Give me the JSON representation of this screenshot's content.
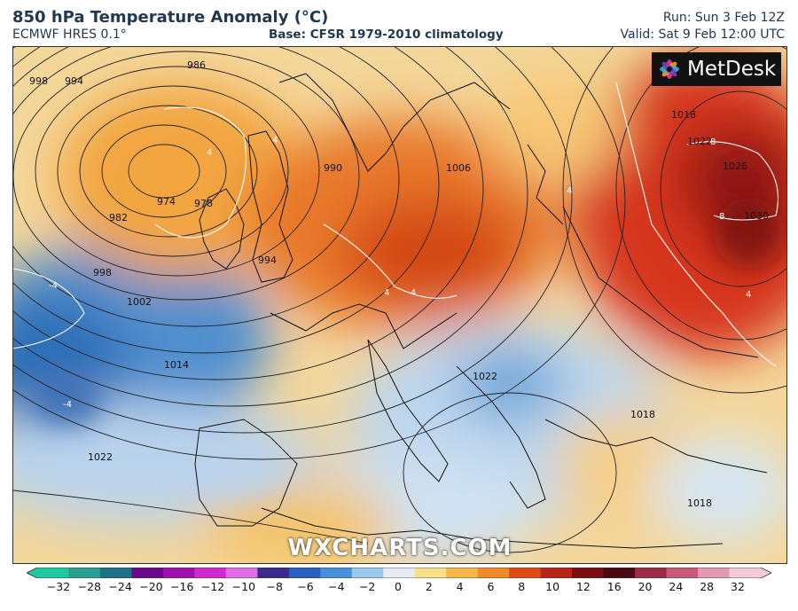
{
  "header": {
    "title": "850 hPa Temperature Anomaly (°C)",
    "model": "ECMWF HRES 0.1°",
    "base": "Base: CFSR 1979-2010 climatology",
    "run": "Run: Sun 3 Feb 12Z",
    "valid": "Valid: Sat 9 Feb 12:00 UTC"
  },
  "logo": {
    "text": "MetDesk"
  },
  "watermark": "WXCHARTS.COM",
  "isobar_labels": [
    "998",
    "994",
    "986",
    "974",
    "978",
    "982",
    "998",
    "1002",
    "1014",
    "1022",
    "990",
    "994",
    "1006",
    "1018",
    "1022",
    "1026",
    "1030",
    "1022",
    "1018",
    "1018"
  ],
  "anomaly_labels": [
    "4",
    "4",
    "4",
    "4",
    "8",
    "8",
    "-4",
    "-4",
    "4",
    "4"
  ],
  "colorbar": {
    "ticks": [
      "−32",
      "−28",
      "−24",
      "−20",
      "−16",
      "−12",
      "−10",
      "−8",
      "−6",
      "−4",
      "−2",
      "0",
      "2",
      "4",
      "6",
      "8",
      "10",
      "12",
      "16",
      "20",
      "24",
      "28",
      "32"
    ],
    "colors": [
      "#1ec9a0",
      "#2a9d8f",
      "#1f6f86",
      "#6a0a8a",
      "#a010b0",
      "#d22ad0",
      "#e06ee6",
      "#3a2a8a",
      "#2a5fc0",
      "#4a90d8",
      "#9cc8ec",
      "#e8ecf2",
      "#f6e08a",
      "#f5b74a",
      "#f08a2a",
      "#e04a18",
      "#b8241a",
      "#7a0e12",
      "#4a0a12",
      "#9e2a48",
      "#c85a7a",
      "#e39ab0",
      "#f6cbd8"
    ]
  }
}
